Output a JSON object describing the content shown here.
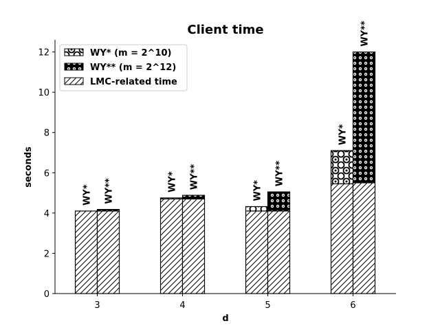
{
  "chart_data": {
    "type": "bar",
    "stacked": true,
    "title": "Client time",
    "xlabel": "d",
    "ylabel": "seconds",
    "categories": [
      "3",
      "4",
      "5",
      "6"
    ],
    "ylim": [
      0,
      12.6
    ],
    "yticks": [
      0,
      2,
      4,
      6,
      8,
      10,
      12
    ],
    "grid": false,
    "legend_position": "top-left",
    "bar_labels": [
      "WY*",
      "WY**"
    ],
    "series": [
      {
        "name": "LMC-related time",
        "pattern": "diagonal-hatch",
        "bar": "both",
        "values_wy_star": [
          4.1,
          4.7,
          4.1,
          5.45
        ],
        "values_wy_star_star": [
          4.1,
          4.7,
          4.1,
          5.5
        ]
      },
      {
        "name": "WY* (m = 2^10)",
        "pattern": "large-circles",
        "bar": "WY*",
        "values": [
          0.0,
          0.05,
          0.22,
          1.65
        ]
      },
      {
        "name": "WY** (m = 2^12)",
        "pattern": "small-circles",
        "bar": "WY**",
        "values": [
          0.08,
          0.18,
          0.95,
          6.5
        ]
      }
    ],
    "legend": [
      "WY* (m = 2^10)",
      "WY** (m = 2^12)",
      "LMC-related time"
    ]
  }
}
